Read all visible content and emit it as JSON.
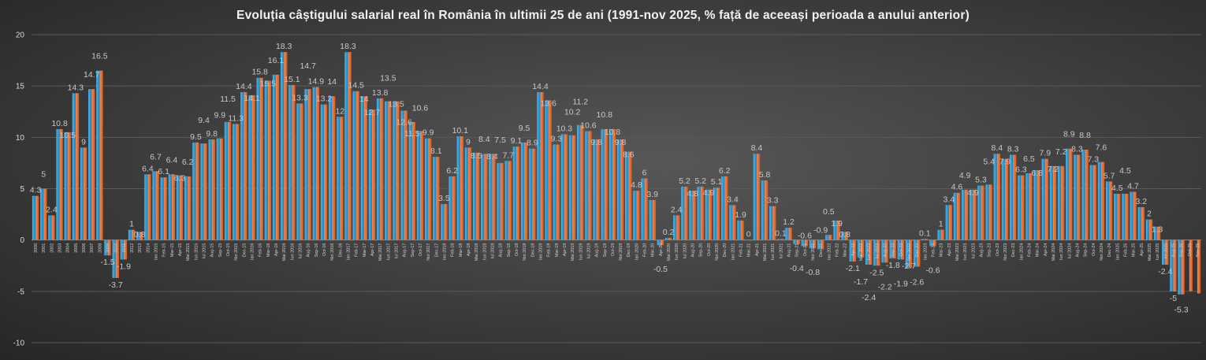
{
  "chart_data": {
    "type": "bar",
    "title": "Evoluția câștigului salarial real în România în ultimii 25 de ani (1991-nov 2025, % față de aceeași perioada a anului anterior)",
    "xlabel": "",
    "ylabel": "",
    "ylim": [
      -10,
      20
    ],
    "yticks": [
      "-10",
      "-5",
      "0",
      "5",
      "10",
      "15",
      "20"
    ],
    "grid": true,
    "legend": "none",
    "categories": [
      "2000",
      "2001",
      "2002",
      "2003",
      "2004",
      "2005",
      "2006",
      "2007",
      "2008",
      "2009",
      "2010",
      "2011",
      "2012",
      "2013",
      "2014",
      "Ian 2015",
      "Feb-15",
      "Mar-15",
      "Apr-15",
      "Mai 2015",
      "Iun 2015",
      "Iul 2015",
      "Aug-15",
      "Sep-15",
      "Oct-15",
      "Noi 2015",
      "Dec-15",
      "Ian 2016",
      "Feb-16",
      "Mar-16",
      "Apr-16",
      "Mai 2016",
      "Iun 2016",
      "Iul 2016",
      "Aug-16",
      "Sep-16",
      "Oct-16",
      "Noi 2016",
      "Dec-16",
      "Ian 2017",
      "Feb-17",
      "Mar-17",
      "Apr-17",
      "Mai 2017",
      "Iun 2017",
      "Iul 2017",
      "Aug-17",
      "Sep-17",
      "Oct-17",
      "Noi 2017",
      "Dec-17",
      "Ian 2018",
      "Feb-18",
      "Mar-18",
      "Apr-18",
      "Mai 2018",
      "Iun 2018",
      "Iul 2018",
      "Aug-18",
      "Sep-18",
      "Oct-18",
      "Noi 2018",
      "Dec-18",
      "Ian 2019",
      "Feb-19",
      "Mar-19",
      "Apr-19",
      "Mai 2019",
      "Iun 2019",
      "Iul 2019",
      "Aug-19",
      "Sep-19",
      "Oct-19",
      "Noi 2019",
      "Dec-19",
      "Ian 2020",
      "Feb-20",
      "Mar-20",
      "Apr-20",
      "Mai 2020",
      "Iun 2020",
      "Iul 2020",
      "Aug-20",
      "Sep-20",
      "Oct-20",
      "Noi 2020",
      "Dec-20",
      "Ian 2021",
      "Feb-21",
      "Mar-21",
      "Apr-21",
      "Mai 2021",
      "Iun 2021",
      "Iul 2021",
      "Aug-21",
      "Sep-21",
      "Oct-21",
      "Noi 2021",
      "Dec-21",
      "Ian 2022",
      "Feb-22",
      "Mar-22",
      "Apr-22",
      "Mai 2022",
      "Iun 2022",
      "Iul 2022",
      "Aug-22",
      "Sep-22",
      "Oct-22",
      "Noi 2022",
      "Dec-22",
      "Ian 2023",
      "Feb-23",
      "Mar-23",
      "Apr-23",
      "Mai 2023",
      "Iun 2023",
      "Iul 2023",
      "Aug-23",
      "Sep-23",
      "Oct-23",
      "Noi 2023",
      "Dec-23",
      "Ian 2024",
      "Feb-24",
      "Mar-24",
      "Apr-24",
      "Mai 2024",
      "Iun 2024",
      "Iul 2024",
      "Aug-24",
      "Sep-24",
      "Oct-24",
      "Noi 2024",
      "Dec-24",
      "Ian 2025",
      "Feb-25",
      "Mar-25",
      "Apr-25",
      "Mai 2025",
      "Iun 2025",
      "Iul 2025",
      "Aug-25",
      "Sep-25",
      "Oct-25",
      "Nov-25"
    ],
    "series": [
      {
        "color": "#1e9ad6",
        "values": [
          4.3,
          5,
          2.4,
          10.8,
          10.5,
          14.3,
          9,
          14.7,
          16.5,
          -1.5,
          -3.7,
          -1.9,
          1,
          0.8,
          6.4,
          6.7,
          6.1,
          6.4,
          6.3,
          6.2,
          9.5,
          9.4,
          9.8,
          9.9,
          11.5,
          11.3,
          14.4,
          14.1,
          15.8,
          15.5,
          16.1,
          18.3,
          15.1,
          13.3,
          14.7,
          14.9,
          13.2,
          14,
          12,
          18.3,
          14.5,
          14.0,
          12.7,
          13.8,
          13.5,
          13.5,
          12.6,
          11.5,
          10.6,
          9.9,
          8.1,
          3.5,
          6.2,
          10.1,
          9.0,
          8.5,
          8.4,
          8.4,
          7.5,
          7.7,
          9.1,
          9.5,
          8.9,
          14.4,
          13.6,
          9.3,
          10.3,
          10.2,
          11.2,
          10.6,
          9.8,
          10.8,
          10.8,
          9.8,
          8.6,
          4.8,
          6.0,
          3.9,
          -0.5,
          0.2,
          2.4,
          5.2,
          4.8,
          5.2,
          4.9,
          5.1,
          6.2,
          3.4,
          1.9,
          0.0,
          8.4,
          5.8,
          3.3,
          0.1,
          1.2,
          -0.4,
          -0.6,
          -0.8,
          -0.9,
          0.5,
          1.9,
          0.8,
          -2.1,
          -1.7,
          -2.4,
          -2.5,
          -2.2,
          -1.8,
          -1.9,
          -2.7,
          -2.6,
          0.1,
          -0.6,
          1.0,
          3.4,
          4.6,
          4.9,
          4.9,
          5.3,
          5.4,
          8.4,
          7.9,
          8.3,
          6.3,
          6.5,
          6.8,
          7.9,
          7.2,
          7.2,
          8.9,
          8.3,
          8.8,
          7.3,
          7.6,
          5.7,
          4.5,
          4.5,
          4.7,
          3.2,
          2.0,
          1.3,
          -2.4,
          -5.0,
          -5.3,
          null,
          null
        ]
      },
      {
        "color": "#e8692b",
        "values": [
          4.3,
          5,
          2.4,
          10.8,
          10.5,
          14.3,
          9,
          14.7,
          16.5,
          -1.5,
          -3.7,
          -1.9,
          1,
          0.8,
          6.4,
          6.7,
          6.1,
          6.4,
          6.3,
          6.2,
          9.5,
          9.4,
          9.8,
          9.9,
          11.5,
          11.3,
          14.4,
          14.1,
          15.8,
          15.5,
          16.1,
          18.3,
          15.1,
          13.3,
          14.7,
          14.9,
          13.2,
          14,
          12,
          18.3,
          14.5,
          14.0,
          12.7,
          13.8,
          13.5,
          13.5,
          12.6,
          11.5,
          10.6,
          9.9,
          8.1,
          3.5,
          6.2,
          10.1,
          9.0,
          8.5,
          8.4,
          8.4,
          7.5,
          7.7,
          9.1,
          9.5,
          8.9,
          14.4,
          13.6,
          9.3,
          10.3,
          10.2,
          11.2,
          10.6,
          9.8,
          10.8,
          10.8,
          9.8,
          8.6,
          4.8,
          6.0,
          3.9,
          -0.5,
          0.2,
          2.4,
          5.2,
          4.8,
          5.2,
          4.9,
          5.1,
          6.2,
          3.4,
          1.9,
          0.0,
          8.4,
          5.8,
          3.3,
          0.1,
          1.2,
          -0.4,
          -0.6,
          -0.8,
          -0.9,
          0.5,
          1.9,
          0.8,
          -2.1,
          -1.7,
          -2.4,
          -2.5,
          -2.2,
          -1.8,
          -1.9,
          -2.7,
          -2.6,
          0.1,
          -0.6,
          1.0,
          3.4,
          4.6,
          4.9,
          4.9,
          5.3,
          5.4,
          8.4,
          7.9,
          8.3,
          6.3,
          6.5,
          6.8,
          7.9,
          7.2,
          7.2,
          8.9,
          8.3,
          8.8,
          7.3,
          7.6,
          5.7,
          4.5,
          4.5,
          4.7,
          3.2,
          2.0,
          1.3,
          -2.4,
          -5.0,
          -5.3,
          -5.0,
          -5.2
        ]
      }
    ]
  }
}
